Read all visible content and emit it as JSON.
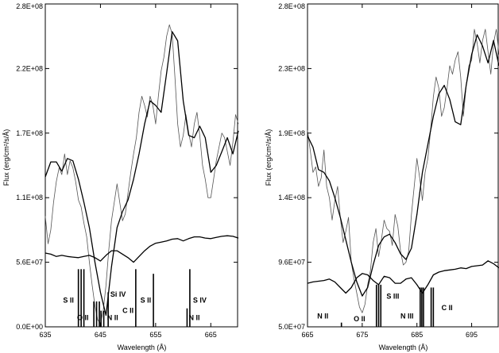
{
  "chart_data": [
    {
      "type": "line",
      "xlabel": "Wavelength (Å)",
      "ylabel": "Flux (erg/cm²/s/Å)",
      "xlim": [
        635,
        670
      ],
      "ylim": [
        0,
        280000000
      ],
      "xticks": [
        635,
        645,
        655,
        665
      ],
      "xtick_labels": [
        "635",
        "645",
        "655",
        "665"
      ],
      "yticks": [
        0,
        56000000,
        112000000,
        168000000,
        224000000,
        280000000
      ],
      "ytick_labels": [
        "0.0E+00",
        "5.6E+07",
        "1.1E+08",
        "1.7E+08",
        "2.2E+08",
        "2.8E+08"
      ],
      "grid": false,
      "series": [
        {
          "role": "observed",
          "x": [
            635,
            635.5,
            636,
            636.5,
            637,
            637.5,
            638,
            638.5,
            639,
            639.5,
            640,
            640.5,
            641,
            641.5,
            642,
            642.5,
            643,
            643.5,
            644,
            644.5,
            645,
            645.5,
            646,
            646.5,
            647,
            647.5,
            648,
            648.5,
            649,
            649.5,
            650,
            650.5,
            651,
            651.5,
            652,
            652.5,
            653,
            653.5,
            654,
            654.5,
            655,
            655.5,
            656,
            656.5,
            657,
            657.5,
            658,
            658.5,
            659,
            659.5,
            660,
            660.5,
            661,
            661.5,
            662,
            662.5,
            663,
            663.5,
            664,
            664.5,
            665,
            665.5,
            666,
            666.5,
            667,
            667.5,
            668,
            668.5,
            669,
            669.5,
            670
          ],
          "y": [
            96000000,
            72000000,
            84000000,
            108000000,
            126000000,
            138000000,
            132000000,
            150000000,
            132000000,
            144000000,
            138000000,
            126000000,
            110000000,
            104000000,
            90000000,
            78000000,
            56000000,
            36000000,
            18000000,
            6000000,
            3000000,
            14000000,
            36000000,
            66000000,
            92000000,
            108000000,
            124000000,
            108000000,
            92000000,
            98000000,
            116000000,
            134000000,
            150000000,
            164000000,
            186000000,
            200000000,
            192000000,
            182000000,
            200000000,
            192000000,
            176000000,
            200000000,
            222000000,
            234000000,
            252000000,
            262000000,
            254000000,
            216000000,
            176000000,
            156000000,
            166000000,
            184000000,
            168000000,
            156000000,
            176000000,
            186000000,
            166000000,
            140000000,
            128000000,
            112000000,
            112000000,
            128000000,
            144000000,
            156000000,
            168000000,
            164000000,
            152000000,
            140000000,
            160000000,
            184000000,
            176000000
          ]
        },
        {
          "role": "model",
          "x": [
            635,
            636,
            637,
            638,
            639,
            640,
            641,
            642,
            643,
            644,
            645,
            646,
            647,
            648,
            649,
            650,
            651,
            652,
            653,
            654,
            655,
            656,
            657,
            658,
            659,
            660,
            661,
            662,
            663,
            664,
            665,
            666,
            667,
            668,
            669,
            670
          ],
          "y": [
            130000000,
            143000000,
            143000000,
            135000000,
            146000000,
            144000000,
            128000000,
            108000000,
            86000000,
            56000000,
            30000000,
            10000000,
            52000000,
            86000000,
            100000000,
            110000000,
            128000000,
            150000000,
            176000000,
            196000000,
            192000000,
            186000000,
            220000000,
            256000000,
            248000000,
            196000000,
            166000000,
            164000000,
            174000000,
            164000000,
            134000000,
            140000000,
            152000000,
            164000000,
            150000000,
            170000000
          ]
        },
        {
          "role": "continuum",
          "x": [
            635,
            636,
            637,
            638,
            639,
            640,
            641,
            642,
            643,
            644,
            645,
            646,
            647,
            648,
            649,
            650,
            651,
            652,
            653,
            654,
            655,
            656,
            657,
            658,
            659,
            660,
            661,
            662,
            663,
            664,
            665,
            666,
            667,
            668,
            669,
            670
          ],
          "y": [
            64000000,
            63000000,
            61000000,
            62000000,
            61000000,
            60500000,
            60000000,
            61000000,
            62000000,
            60000000,
            57000000,
            62000000,
            66000000,
            66000000,
            63000000,
            60000000,
            56000000,
            61000000,
            66000000,
            70000000,
            72500000,
            73500000,
            74500000,
            76000000,
            76500000,
            74500000,
            76500000,
            78000000,
            78000000,
            77000000,
            76500000,
            77500000,
            78500000,
            79000000,
            78500000,
            77000000
          ]
        }
      ],
      "line_ids": [
        {
          "label": "S II",
          "x": [
            641.0,
            641.5,
            642.0
          ],
          "top": 50000000,
          "text_x": 639.2,
          "text_y": 21000000
        },
        {
          "label": "O II",
          "x": [
            643.8,
            644.3,
            644.8
          ],
          "top": 22000000,
          "text_x": 641.8,
          "text_y": 6000000
        },
        {
          "label": "Si IV",
          "x": [
            646.4
          ],
          "top": 30000000,
          "text_x": 648.2,
          "text_y": 26000000
        },
        {
          "label": "N II",
          "x": [
            645.1,
            645.6
          ],
          "top": 14000000,
          "text_x": 647.2,
          "text_y": 6000000
        },
        {
          "label": "C II",
          "x": [
            651.4
          ],
          "top": 50000000,
          "text_x": 650.0,
          "text_y": 12000000
        },
        {
          "label": "S II",
          "x": [
            654.6
          ],
          "top": 46000000,
          "text_x": 653.2,
          "text_y": 21000000
        },
        {
          "label": "S IV",
          "x": [
            661.2
          ],
          "top": 50000000,
          "text_x": 663.0,
          "text_y": 21000000
        },
        {
          "label": "N II",
          "x": [
            660.7
          ],
          "top": 16000000,
          "text_x": 662.0,
          "text_y": 6000000
        }
      ]
    },
    {
      "type": "line",
      "xlabel": "Wavelength (Å)",
      "ylabel": "Flux (erg/cm²/s/Å)",
      "xlim": [
        665,
        700
      ],
      "ylim": [
        50000000,
        280000000
      ],
      "xticks": [
        665,
        675,
        685,
        695
      ],
      "xtick_labels": [
        "665",
        "675",
        "685",
        "695"
      ],
      "yticks": [
        50000000,
        96000000,
        142000000,
        188000000,
        234000000,
        280000000
      ],
      "ytick_labels": [
        "5.0E+07",
        "9.6E+07",
        "1.4E+08",
        "1.9E+08",
        "2.3E+08",
        "2.8E+08"
      ],
      "grid": false,
      "series": [
        {
          "role": "observed",
          "x": [
            665,
            665.5,
            666,
            666.5,
            667,
            667.5,
            668,
            668.5,
            669,
            669.5,
            670,
            670.5,
            671,
            671.5,
            672,
            672.5,
            673,
            673.5,
            674,
            674.5,
            675,
            675.5,
            676,
            676.5,
            677,
            677.5,
            678,
            678.5,
            679,
            679.5,
            680,
            680.5,
            681,
            681.5,
            682,
            682.5,
            683,
            683.5,
            684,
            684.5,
            685,
            685.5,
            686,
            686.5,
            687,
            687.5,
            688,
            688.5,
            689,
            689.5,
            690,
            690.5,
            691,
            691.5,
            692,
            692.5,
            693,
            693.5,
            694,
            694.5,
            695,
            695.5,
            696,
            696.5,
            697,
            697.5,
            698,
            698.5,
            699,
            699.5,
            700
          ],
          "y": [
            190000000,
            176000000,
            160000000,
            164000000,
            150000000,
            156000000,
            176000000,
            150000000,
            142000000,
            126000000,
            140000000,
            150000000,
            128000000,
            110000000,
            118000000,
            128000000,
            96000000,
            84000000,
            74000000,
            64000000,
            60000000,
            66000000,
            80000000,
            90000000,
            110000000,
            120000000,
            100000000,
            112000000,
            126000000,
            120000000,
            118000000,
            108000000,
            130000000,
            122000000,
            104000000,
            94000000,
            96000000,
            104000000,
            130000000,
            150000000,
            170000000,
            156000000,
            140000000,
            160000000,
            170000000,
            190000000,
            214000000,
            228000000,
            220000000,
            200000000,
            206000000,
            220000000,
            236000000,
            230000000,
            240000000,
            246000000,
            228000000,
            200000000,
            222000000,
            236000000,
            240000000,
            262000000,
            252000000,
            238000000,
            254000000,
            262000000,
            246000000,
            230000000,
            252000000,
            262000000,
            244000000
          ]
        },
        {
          "role": "model",
          "x": [
            665,
            666,
            667,
            668,
            669,
            670,
            671,
            672,
            673,
            674,
            675,
            676,
            677,
            678,
            679,
            680,
            681,
            682,
            683,
            684,
            685,
            686,
            687,
            688,
            689,
            690,
            691,
            692,
            693,
            694,
            695,
            696,
            697,
            698,
            699,
            700
          ],
          "y": [
            186000000,
            178000000,
            162000000,
            160000000,
            154000000,
            142000000,
            128000000,
            112000000,
            96000000,
            82000000,
            72000000,
            78000000,
            94000000,
            108000000,
            114000000,
            116000000,
            110000000,
            102000000,
            98000000,
            106000000,
            130000000,
            160000000,
            180000000,
            200000000,
            216000000,
            222000000,
            212000000,
            196000000,
            194000000,
            222000000,
            244000000,
            258000000,
            250000000,
            238000000,
            254000000,
            236000000
          ]
        },
        {
          "role": "continuum",
          "x": [
            665,
            666,
            667,
            668,
            669,
            670,
            671,
            672,
            673,
            674,
            675,
            676,
            677,
            678,
            679,
            680,
            681,
            682,
            683,
            684,
            685,
            686,
            687,
            688,
            689,
            690,
            691,
            692,
            693,
            694,
            695,
            696,
            697,
            698,
            699,
            700
          ],
          "y": [
            81000000,
            82000000,
            82500000,
            83000000,
            84000000,
            82000000,
            78000000,
            74000000,
            78000000,
            85000000,
            88000000,
            87000000,
            83000000,
            80000000,
            86000000,
            85000000,
            81000000,
            81000000,
            84000000,
            85000000,
            80000000,
            74000000,
            80000000,
            87000000,
            89000000,
            90000000,
            90500000,
            91000000,
            92000000,
            91500000,
            93000000,
            93500000,
            94000000,
            97000000,
            95000000,
            92000000
          ]
        }
      ],
      "line_ids": [
        {
          "label": "N II",
          "x": [
            671.2
          ],
          "top": 53000000,
          "text_x": 667.8,
          "text_y": 56000000
        },
        {
          "label": "O II",
          "x": [
            672.9
          ],
          "top": 50000000,
          "text_x": 674.5,
          "text_y": 54000000
        },
        {
          "label": "S III",
          "x": [
            677.6,
            678.0,
            678.4
          ],
          "top": 80000000,
          "text_x": 680.6,
          "text_y": 70000000
        },
        {
          "label": "N III",
          "x": [
            685.6,
            685.9,
            686.2
          ],
          "top": 78000000,
          "text_x": 683.2,
          "text_y": 56000000
        },
        {
          "label": "C II",
          "x": [
            687.6,
            688.0
          ],
          "top": 78000000,
          "text_x": 690.5,
          "text_y": 62000000
        }
      ]
    }
  ]
}
